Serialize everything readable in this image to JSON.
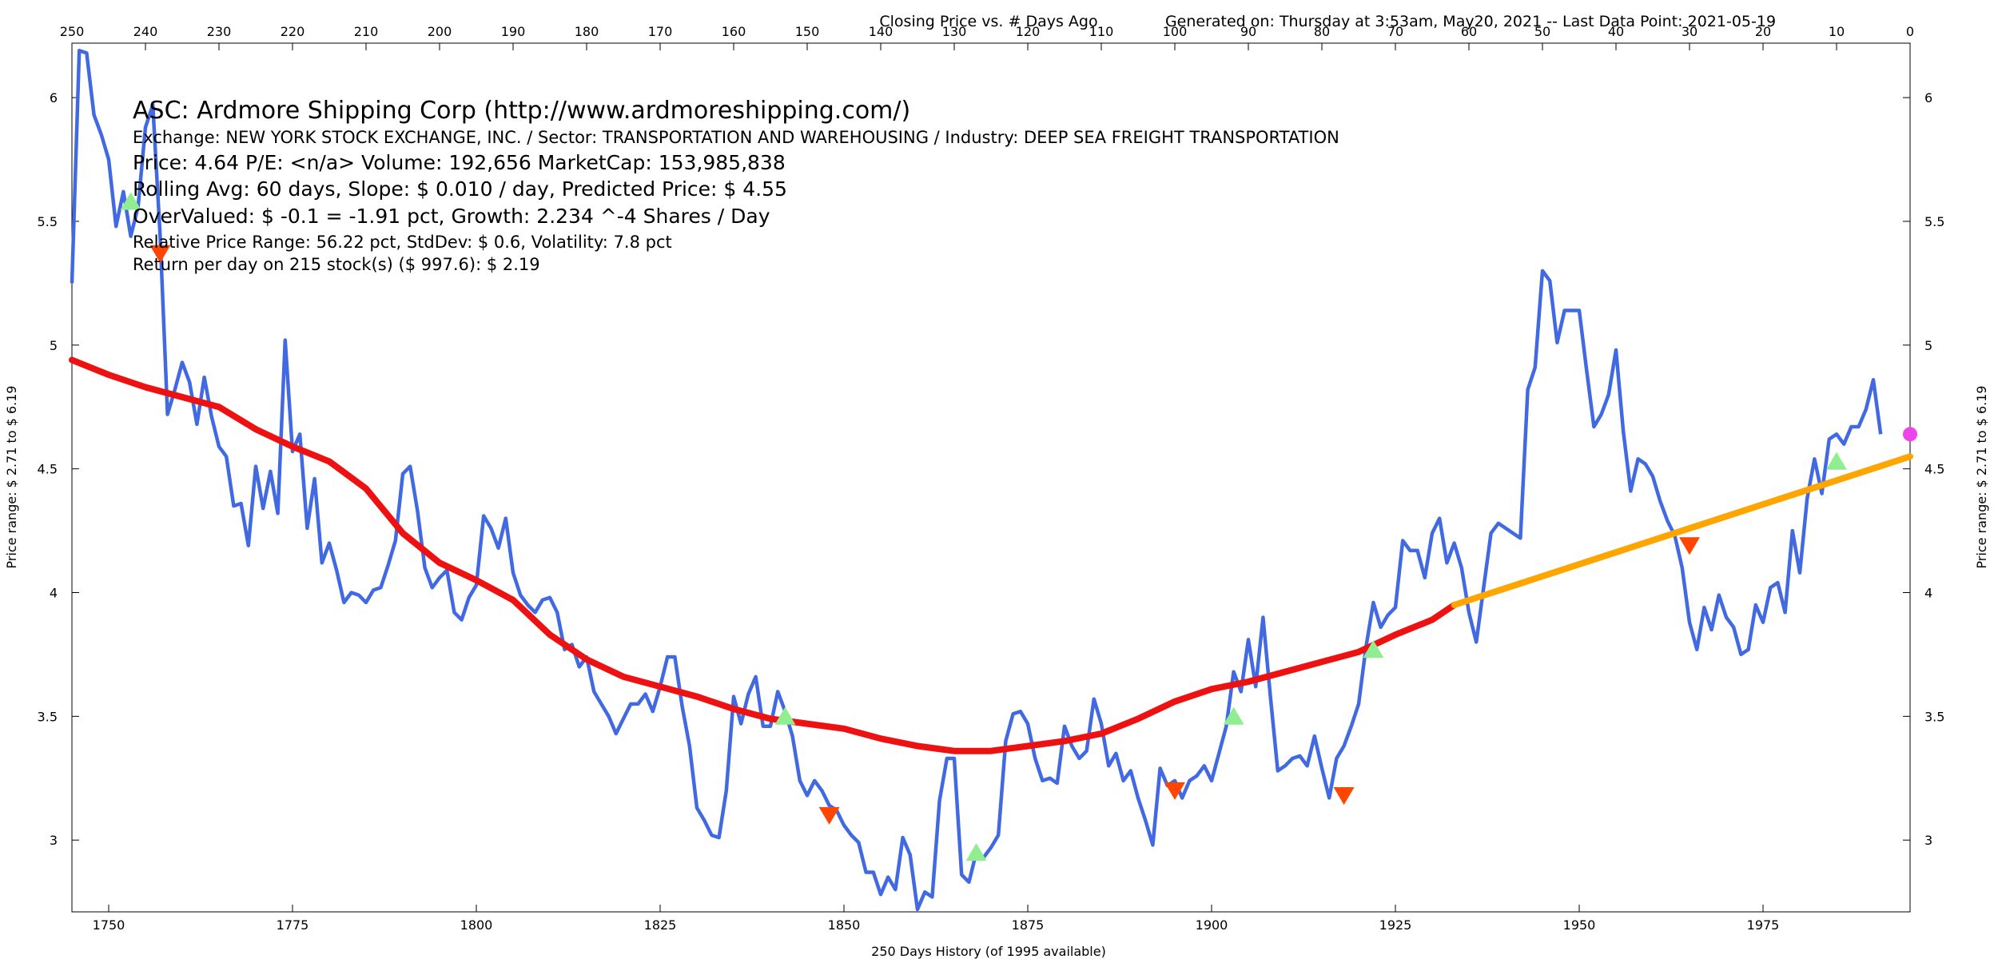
{
  "header": {
    "title": "Closing Price vs. # Days Ago",
    "generated": "Generated on:  Thursday at  3:53am, May20, 2021  --  Last Data Point:  2021-05-19"
  },
  "info": {
    "title": "ASC:  Ardmore Shipping Corp  (http://www.ardmoreshipping.com/)",
    "exchange": "Exchange: NEW YORK STOCK EXCHANGE, INC.  /  Sector: TRANSPORTATION AND WAREHOUSING  /  Industry: DEEP SEA FREIGHT TRANSPORTATION",
    "price": "Price: 4.64  P/E: <n/a> Volume: 192,656  MarketCap: 153,985,838",
    "rolling": "Rolling Avg: 60 days, Slope: $ 0.010 / day, Predicted Price: $ 4.55",
    "overvalued": "OverValued: $ -0.1 = -1.91 pct,  Growth: 2.234 ^-4 Shares / Day",
    "range": "Relative Price Range: 56.22 pct, StdDev: $ 0.6, Volatility: 7.8 pct",
    "return": "Return per day on 215 stock(s) ($ 997.6): $ 2.19"
  },
  "colors": {
    "price": "#4169e1",
    "rolling_avg": "#ee1111",
    "projection": "#ffa500",
    "buy_marker": "#90ee90",
    "sell_marker": "#ff4500",
    "last_point": "#ee44ee"
  },
  "chart_data": {
    "type": "line",
    "xlabel": "250 Days History (of 1995 available)",
    "ylabel_left": "Price range:  $ 2.71  to  $ 6.19",
    "ylabel_right": "Price range: $ 2.71  to  $ 6.19",
    "x_bottom_range": [
      1745,
      1995
    ],
    "x_bottom_ticks": [
      1750,
      1775,
      1800,
      1825,
      1850,
      1875,
      1900,
      1925,
      1950,
      1975
    ],
    "x_top_ticks": [
      250,
      240,
      230,
      220,
      210,
      200,
      190,
      180,
      170,
      160,
      150,
      140,
      130,
      120,
      110,
      100,
      90,
      80,
      70,
      60,
      50,
      40,
      30,
      20,
      10,
      0
    ],
    "ylim": [
      2.71,
      6.22
    ],
    "y_ticks": [
      3,
      3.5,
      4,
      4.5,
      5,
      5.5,
      6
    ],
    "series": [
      {
        "name": "Closing Price",
        "start_x": 1745,
        "values": [
          5.25,
          6.19,
          6.18,
          5.93,
          5.85,
          5.75,
          5.48,
          5.62,
          5.44,
          5.56,
          5.88,
          5.97,
          5.44,
          4.72,
          4.82,
          4.93,
          4.85,
          4.68,
          4.87,
          4.71,
          4.59,
          4.55,
          4.35,
          4.36,
          4.19,
          4.51,
          4.34,
          4.49,
          4.32,
          5.02,
          4.57,
          4.64,
          4.26,
          4.46,
          4.12,
          4.2,
          4.09,
          3.96,
          4.0,
          3.99,
          3.96,
          4.01,
          4.02,
          4.11,
          4.21,
          4.48,
          4.51,
          4.33,
          4.1,
          4.02,
          4.06,
          4.09,
          3.92,
          3.89,
          3.98,
          4.03,
          4.31,
          4.26,
          4.18,
          4.3,
          4.08,
          3.99,
          3.95,
          3.92,
          3.97,
          3.98,
          3.92,
          3.77,
          3.79,
          3.7,
          3.74,
          3.6,
          3.55,
          3.5,
          3.43,
          3.49,
          3.55,
          3.55,
          3.59,
          3.52,
          3.62,
          3.74,
          3.74,
          3.54,
          3.38,
          3.13,
          3.08,
          3.02,
          3.01,
          3.2,
          3.58,
          3.47,
          3.59,
          3.66,
          3.46,
          3.46,
          3.6,
          3.52,
          3.42,
          3.24,
          3.18,
          3.24,
          3.2,
          3.14,
          3.12,
          3.06,
          3.02,
          2.99,
          2.87,
          2.87,
          2.78,
          2.85,
          2.8,
          3.01,
          2.94,
          2.72,
          2.79,
          2.77,
          3.16,
          3.33,
          3.33,
          2.86,
          2.83,
          2.95,
          2.93,
          2.97,
          3.02,
          3.4,
          3.51,
          3.52,
          3.47,
          3.33,
          3.24,
          3.25,
          3.23,
          3.46,
          3.38,
          3.33,
          3.36,
          3.57,
          3.47,
          3.3,
          3.35,
          3.24,
          3.28,
          3.17,
          3.08,
          2.98,
          3.29,
          3.22,
          3.24,
          3.17,
          3.24,
          3.26,
          3.3,
          3.24,
          3.35,
          3.46,
          3.68,
          3.6,
          3.81,
          3.62,
          3.9,
          3.58,
          3.28,
          3.3,
          3.33,
          3.34,
          3.3,
          3.42,
          3.29,
          3.17,
          3.33,
          3.38,
          3.46,
          3.55,
          3.78,
          3.96,
          3.86,
          3.91,
          3.94,
          4.21,
          4.17,
          4.17,
          4.06,
          4.24,
          4.3,
          4.12,
          4.2,
          4.1,
          3.92,
          3.8,
          4.02,
          4.24,
          4.28,
          4.26,
          4.24,
          4.22,
          4.82,
          4.91,
          5.3,
          5.26,
          5.01,
          5.14,
          5.14,
          5.14,
          4.9,
          4.67,
          4.72,
          4.8,
          4.98,
          4.65,
          4.41,
          4.54,
          4.52,
          4.47,
          4.37,
          4.29,
          4.23,
          4.1,
          3.88,
          3.77,
          3.94,
          3.85,
          3.99,
          3.9,
          3.86,
          3.75,
          3.77,
          3.95,
          3.88,
          4.02,
          4.04,
          3.92,
          4.25,
          4.08,
          4.38,
          4.54,
          4.4,
          4.62,
          4.64,
          4.6,
          4.67,
          4.67,
          4.74,
          4.86,
          4.64
        ]
      },
      {
        "name": "Rolling Avg",
        "points": [
          [
            1745,
            4.94
          ],
          [
            1750,
            4.88
          ],
          [
            1755,
            4.83
          ],
          [
            1760,
            4.79
          ],
          [
            1765,
            4.75
          ],
          [
            1770,
            4.66
          ],
          [
            1775,
            4.59
          ],
          [
            1780,
            4.53
          ],
          [
            1785,
            4.42
          ],
          [
            1790,
            4.24
          ],
          [
            1795,
            4.12
          ],
          [
            1800,
            4.05
          ],
          [
            1805,
            3.97
          ],
          [
            1810,
            3.83
          ],
          [
            1815,
            3.73
          ],
          [
            1820,
            3.66
          ],
          [
            1825,
            3.62
          ],
          [
            1830,
            3.58
          ],
          [
            1835,
            3.53
          ],
          [
            1840,
            3.49
          ],
          [
            1845,
            3.47
          ],
          [
            1850,
            3.45
          ],
          [
            1855,
            3.41
          ],
          [
            1860,
            3.38
          ],
          [
            1865,
            3.36
          ],
          [
            1870,
            3.36
          ],
          [
            1875,
            3.38
          ],
          [
            1880,
            3.4
          ],
          [
            1885,
            3.43
          ],
          [
            1890,
            3.49
          ],
          [
            1895,
            3.56
          ],
          [
            1900,
            3.61
          ],
          [
            1905,
            3.64
          ],
          [
            1910,
            3.68
          ],
          [
            1915,
            3.72
          ],
          [
            1920,
            3.76
          ],
          [
            1925,
            3.83
          ],
          [
            1930,
            3.89
          ],
          [
            1933,
            3.95
          ]
        ]
      },
      {
        "name": "Projection",
        "points": [
          [
            1933,
            3.95
          ],
          [
            1995,
            4.55
          ]
        ]
      }
    ],
    "buy_markers": [
      [
        1753,
        5.58
      ],
      [
        1842,
        3.5
      ],
      [
        1868,
        2.95
      ],
      [
        1903,
        3.5
      ],
      [
        1922,
        3.77
      ],
      [
        1985,
        4.53
      ]
    ],
    "sell_markers": [
      [
        1757,
        5.37
      ],
      [
        1848,
        3.1
      ],
      [
        1895,
        3.2
      ],
      [
        1918,
        3.18
      ],
      [
        1965,
        4.19
      ]
    ],
    "last_point": [
      1995,
      4.64
    ]
  }
}
